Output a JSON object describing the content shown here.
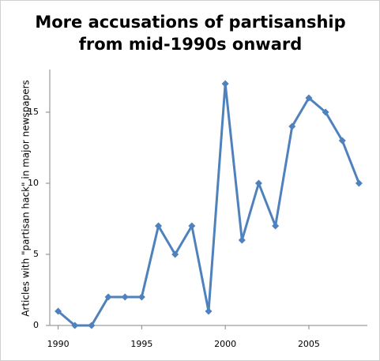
{
  "chart_data": {
    "type": "line",
    "title": [
      "More accusations of partisanship",
      "from mid-1990s onward"
    ],
    "ylabel": "Articles with \"partisan hack\" in major newspapers",
    "x": [
      1990,
      1991,
      1992,
      1993,
      1994,
      1995,
      1996,
      1997,
      1998,
      1999,
      2000,
      2001,
      2002,
      2003,
      2004,
      2005,
      2006,
      2007,
      2008
    ],
    "series": [
      {
        "color": "#4f81bd",
        "values": [
          1,
          0,
          0,
          2,
          2,
          2,
          7,
          5,
          7,
          1,
          17,
          6,
          10,
          7,
          14,
          16,
          15,
          13,
          10
        ]
      }
    ],
    "xlim": [
      1989.5,
      2008.5
    ],
    "xticks": [
      1990,
      1995,
      2000,
      2005
    ],
    "ylim": [
      0,
      18
    ],
    "yticks": [
      0,
      5,
      10,
      15
    ]
  }
}
